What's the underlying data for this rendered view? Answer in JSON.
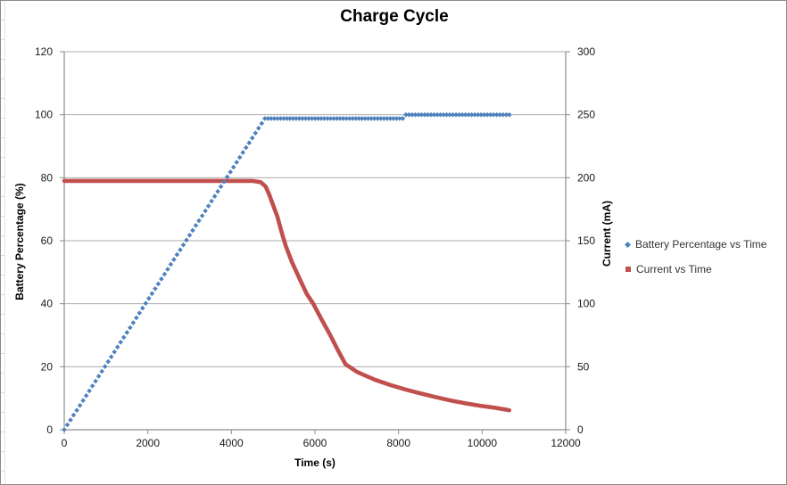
{
  "chart_data": {
    "type": "scatter",
    "title": "Charge Cycle",
    "x_axis": {
      "label": "Time (s)",
      "min": 0,
      "max": 12000,
      "tick_step": 2000,
      "ticks": [
        0,
        2000,
        4000,
        6000,
        8000,
        10000,
        12000
      ],
      "grid": false
    },
    "y_left": {
      "label": "Battery Percentage (%)",
      "min": 0,
      "max": 120,
      "tick_step": 20,
      "ticks": [
        0,
        20,
        40,
        60,
        80,
        100,
        120
      ],
      "grid": true
    },
    "y_right": {
      "label": "Current (mA)",
      "min": 0,
      "max": 300,
      "tick_step": 50,
      "ticks": [
        0,
        50,
        100,
        150,
        200,
        250,
        300
      ],
      "grid": false
    },
    "series": [
      {
        "name": "Battery Percentage vs Time",
        "axis": "left",
        "marker": "diamond",
        "color": "#4F81BD",
        "marker_interval_s": 75,
        "points": [
          [
            0,
            0
          ],
          [
            4800,
            98.8
          ],
          [
            8150,
            98.8
          ],
          [
            8160,
            100
          ],
          [
            10650,
            100
          ]
        ]
      },
      {
        "name": "Current vs Time",
        "axis": "right",
        "marker": "square",
        "color": "#C0504D",
        "points": [
          [
            0,
            197.5
          ],
          [
            4500,
            197.5
          ],
          [
            4700,
            196.5
          ],
          [
            4820,
            193
          ],
          [
            4900,
            187
          ],
          [
            5000,
            178
          ],
          [
            5100,
            169
          ],
          [
            5200,
            157
          ],
          [
            5300,
            146
          ],
          [
            5450,
            133
          ],
          [
            5600,
            122
          ],
          [
            5800,
            108
          ],
          [
            5960,
            100
          ],
          [
            6150,
            88
          ],
          [
            6350,
            76
          ],
          [
            6550,
            63
          ],
          [
            6730,
            52
          ],
          [
            7000,
            46
          ],
          [
            7200,
            43
          ],
          [
            7450,
            39.5
          ],
          [
            7800,
            35.5
          ],
          [
            8160,
            32
          ],
          [
            8500,
            29
          ],
          [
            8880,
            26
          ],
          [
            9200,
            23.5
          ],
          [
            9590,
            21
          ],
          [
            9950,
            19
          ],
          [
            10300,
            17.5
          ],
          [
            10650,
            15.5
          ]
        ]
      }
    ],
    "legend_position": "right",
    "colors": {
      "axis_line": "#8c8c8c",
      "gridline": "#adadad",
      "tick_label": "#1a1a1a",
      "series_blue": "#4F81BD",
      "series_red": "#C0504D"
    }
  }
}
